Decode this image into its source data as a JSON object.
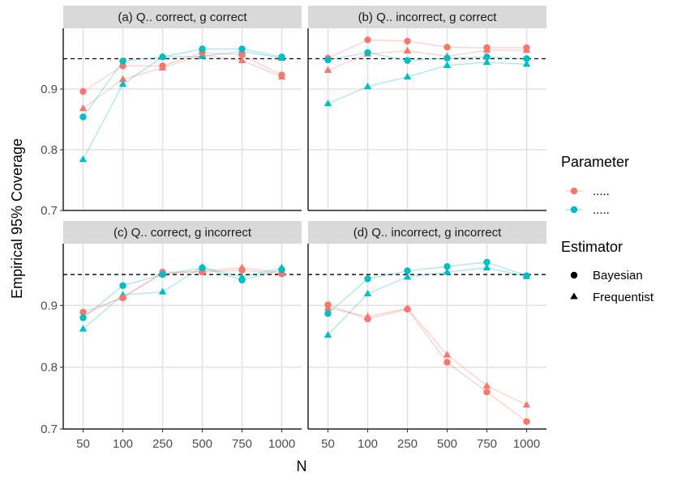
{
  "chart_data": {
    "type": "line",
    "ylabel": "Empirical 95% Coverage",
    "xlabel": "N",
    "x_categories": [
      "50",
      "100",
      "250",
      "500",
      "750",
      "1000"
    ],
    "ylim": [
      0.7,
      1.0
    ],
    "y_ticks": [
      0.7,
      0.8,
      0.9
    ],
    "reference_line": 0.95,
    "colors": {
      "param1": "#F8766D",
      "param2": "#00BFC4"
    },
    "legend": {
      "placement": "right",
      "parameter_title": "Parameter",
      "parameter_items": [
        {
          "label": ".....",
          "color": "#F8766D"
        },
        {
          "label": ".....",
          "color": "#00BFC4"
        }
      ],
      "estimator_title": "Estimator",
      "estimator_items": [
        {
          "label": "Bayesian",
          "shape": "circle"
        },
        {
          "label": "Frequentist",
          "shape": "triangle"
        }
      ]
    },
    "panels": [
      {
        "title": "(a) Q.. correct, g correct",
        "series": [
          {
            "param": "param1",
            "estimator": "Bayesian",
            "values": [
              0.896,
              0.938,
              0.938,
              0.96,
              0.956,
              0.923
            ]
          },
          {
            "param": "param1",
            "estimator": "Frequentist",
            "values": [
              0.868,
              0.916,
              0.935,
              0.956,
              0.947,
              0.92
            ]
          },
          {
            "param": "param2",
            "estimator": "Bayesian",
            "values": [
              0.854,
              0.946,
              0.953,
              0.966,
              0.966,
              0.953
            ]
          },
          {
            "param": "param2",
            "estimator": "Frequentist",
            "values": [
              0.784,
              0.908,
              0.953,
              0.954,
              0.962,
              0.951
            ]
          }
        ]
      },
      {
        "title": "(b) Q.. incorrect, g correct",
        "series": [
          {
            "param": "param1",
            "estimator": "Bayesian",
            "values": [
              0.951,
              0.981,
              0.979,
              0.969,
              0.968,
              0.968
            ]
          },
          {
            "param": "param1",
            "estimator": "Frequentist",
            "values": [
              0.931,
              0.958,
              0.963,
              0.954,
              0.964,
              0.964
            ]
          },
          {
            "param": "param2",
            "estimator": "Bayesian",
            "values": [
              0.948,
              0.96,
              0.947,
              0.951,
              0.953,
              0.95
            ]
          },
          {
            "param": "param2",
            "estimator": "Frequentist",
            "values": [
              0.876,
              0.904,
              0.92,
              0.939,
              0.944,
              0.941
            ]
          }
        ]
      },
      {
        "title": "(c) Q.. correct, g incorrect",
        "series": [
          {
            "param": "param1",
            "estimator": "Bayesian",
            "values": [
              0.889,
              0.912,
              0.954,
              0.954,
              0.957,
              0.951
            ]
          },
          {
            "param": "param1",
            "estimator": "Frequentist",
            "values": [
              0.884,
              0.914,
              0.951,
              0.956,
              0.961,
              0.953
            ]
          },
          {
            "param": "param2",
            "estimator": "Bayesian",
            "values": [
              0.88,
              0.932,
              0.95,
              0.961,
              0.941,
              0.958
            ]
          },
          {
            "param": "param2",
            "estimator": "Frequentist",
            "values": [
              0.862,
              0.917,
              0.922,
              0.962,
              0.946,
              0.961
            ]
          }
        ]
      },
      {
        "title": "(d) Q.. incorrect, g incorrect",
        "series": [
          {
            "param": "param1",
            "estimator": "Bayesian",
            "values": [
              0.901,
              0.878,
              0.894,
              0.808,
              0.76,
              0.712
            ]
          },
          {
            "param": "param1",
            "estimator": "Frequentist",
            "values": [
              0.896,
              0.882,
              0.895,
              0.82,
              0.77,
              0.739
            ]
          },
          {
            "param": "param2",
            "estimator": "Bayesian",
            "values": [
              0.887,
              0.943,
              0.956,
              0.963,
              0.97,
              0.948
            ]
          },
          {
            "param": "param2",
            "estimator": "Frequentist",
            "values": [
              0.852,
              0.919,
              0.946,
              0.954,
              0.961,
              0.947
            ]
          }
        ]
      }
    ]
  }
}
